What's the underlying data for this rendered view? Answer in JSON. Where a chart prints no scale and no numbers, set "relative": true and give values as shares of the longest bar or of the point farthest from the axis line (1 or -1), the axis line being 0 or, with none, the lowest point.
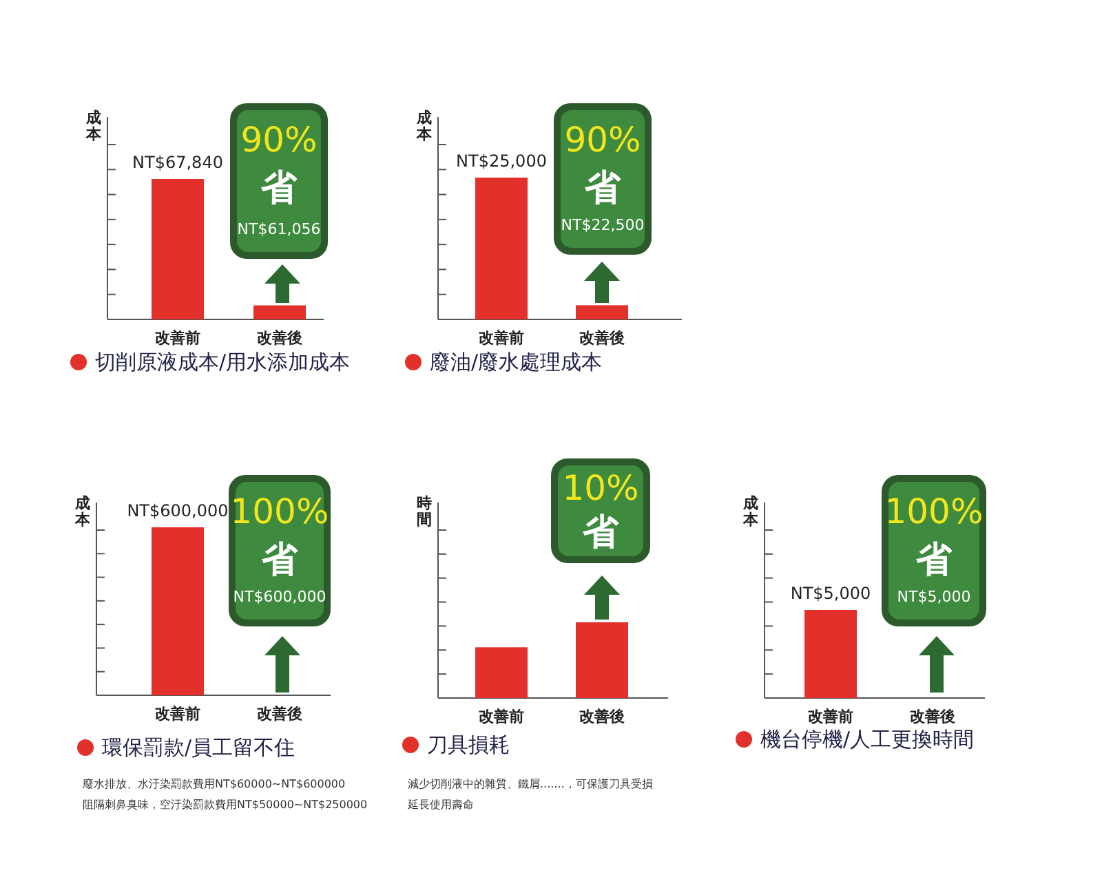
{
  "chart_data": [
    {
      "type": "bar",
      "title": "切削原液成本/用水添加成本",
      "ylabel": "成本",
      "categories": [
        "改善前",
        "改善後"
      ],
      "series": [
        {
          "color": "#e2312b",
          "values": [
            67840,
            6784
          ],
          "value_labels": [
            "NT$67,840",
            null
          ]
        }
      ],
      "annotations": [
        "90%",
        "省",
        "NT$61,056"
      ]
    },
    {
      "type": "bar",
      "title": "廢油/廢水處理成本",
      "ylabel": "成本",
      "categories": [
        "改善前",
        "改善後"
      ],
      "series": [
        {
          "color": "#e2312b",
          "values": [
            25000,
            2500
          ],
          "value_labels": [
            "NT$25,000",
            null
          ]
        }
      ],
      "annotations": [
        "90%",
        "省",
        "NT$22,500"
      ]
    },
    {
      "type": "bar",
      "title": "環保罰款/員工留不住",
      "ylabel": "成本",
      "categories": [
        "改善前",
        "改善後"
      ],
      "series": [
        {
          "color": "#e2312b",
          "values": [
            600000,
            0
          ],
          "value_labels": [
            "NT$600,000",
            null
          ]
        }
      ],
      "annotations": [
        "100%",
        "省",
        "NT$600,000",
        "廢水排放、水汙染罰款費用NT$60000~NT$600000",
        "阻隔刺鼻臭味，空汙染罰款費用NT$50000~NT$250000"
      ]
    },
    {
      "type": "bar",
      "relative": true,
      "title": "刀具損耗",
      "ylabel": "時間",
      "categories": [
        "改善前",
        "改善後"
      ],
      "series": [
        {
          "color": "#e2312b",
          "values": [
            0.67,
            1
          ]
        }
      ],
      "annotations": [
        "10%",
        "省",
        "減少切削液中的雜質、鐵屑.......，可保護刀具受損",
        "延長使用壽命"
      ]
    },
    {
      "type": "bar",
      "title": "機台停機/人工更換時間",
      "ylabel": "成本",
      "categories": [
        "改善前",
        "改善後"
      ],
      "series": [
        {
          "color": "#e2312b",
          "values": [
            5000,
            0
          ],
          "value_labels": [
            "NT$5,000",
            null
          ]
        }
      ],
      "annotations": [
        "100%",
        "省",
        "NT$5,000"
      ]
    }
  ]
}
